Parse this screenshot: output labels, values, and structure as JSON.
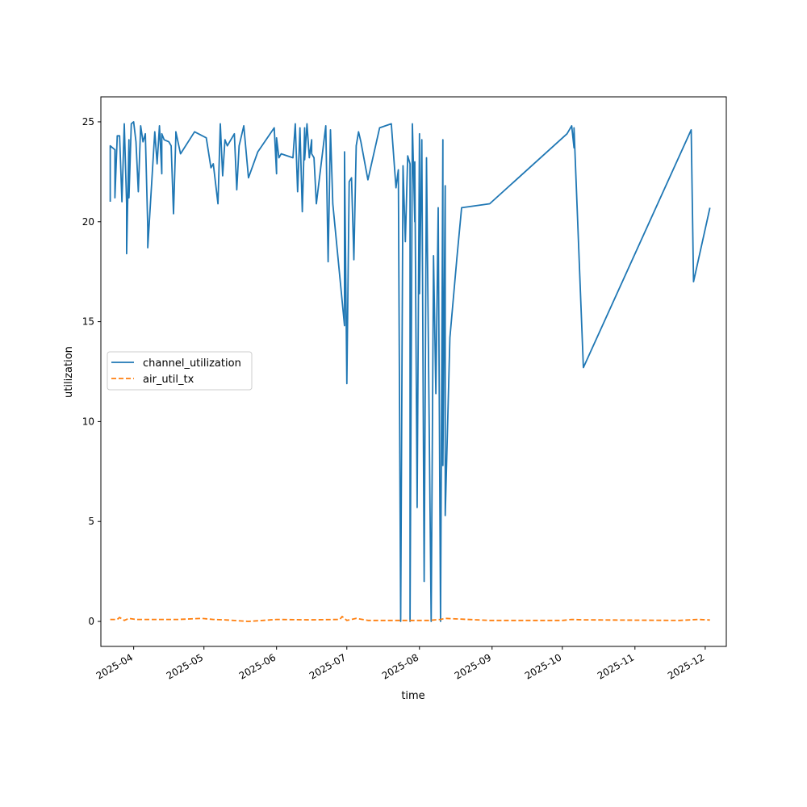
{
  "chart_data": {
    "type": "line",
    "title": "",
    "xlabel": "time",
    "ylabel": "utilization",
    "x_range": [
      "2025-03-18",
      "2025-12-10"
    ],
    "ylim": [
      -1.25,
      26.25
    ],
    "y_ticks": [
      0,
      5,
      10,
      15,
      20,
      25
    ],
    "x_ticks": [
      "2025-04",
      "2025-05",
      "2025-06",
      "2025-07",
      "2025-08",
      "2025-09",
      "2025-10",
      "2025-11",
      "2025-12"
    ],
    "grid": false,
    "legend_position": "center-left",
    "series": [
      {
        "name": "channel_utilization",
        "color": "#1f77b4",
        "style": "solid",
        "x": [
          "2025-03-22",
          "2025-03-22",
          "2025-03-24",
          "2025-03-24",
          "2025-03-25",
          "2025-03-26",
          "2025-03-27",
          "2025-03-28",
          "2025-03-29",
          "2025-03-29",
          "2025-03-30",
          "2025-03-30",
          "2025-03-31",
          "2025-04-01",
          "2025-04-02",
          "2025-04-03",
          "2025-04-04",
          "2025-04-05",
          "2025-04-06",
          "2025-04-07",
          "2025-04-07",
          "2025-04-10",
          "2025-04-11",
          "2025-04-12",
          "2025-04-13",
          "2025-04-13",
          "2025-04-14",
          "2025-04-16",
          "2025-04-17",
          "2025-04-18",
          "2025-04-19",
          "2025-04-19",
          "2025-04-21",
          "2025-04-27",
          "2025-05-02",
          "2025-05-04",
          "2025-05-05",
          "2025-05-07",
          "2025-05-08",
          "2025-05-09",
          "2025-05-10",
          "2025-05-11",
          "2025-05-14",
          "2025-05-15",
          "2025-05-16",
          "2025-05-18",
          "2025-05-20",
          "2025-05-24",
          "2025-05-31",
          "2025-06-01",
          "2025-06-01",
          "2025-06-02",
          "2025-06-03",
          "2025-06-08",
          "2025-06-09",
          "2025-06-10",
          "2025-06-11",
          "2025-06-12",
          "2025-06-13",
          "2025-06-13",
          "2025-06-14",
          "2025-06-15",
          "2025-06-16",
          "2025-06-16",
          "2025-06-17",
          "2025-06-18",
          "2025-06-22",
          "2025-06-23",
          "2025-06-24",
          "2025-06-25",
          "2025-06-30",
          "2025-06-30",
          "2025-07-01",
          "2025-07-02",
          "2025-07-03",
          "2025-07-04",
          "2025-07-05",
          "2025-07-06",
          "2025-07-07",
          "2025-07-10",
          "2025-07-15",
          "2025-07-20",
          "2025-07-22",
          "2025-07-23",
          "2025-07-24",
          "2025-07-25",
          "2025-07-26",
          "2025-07-27",
          "2025-07-28",
          "2025-07-28",
          "2025-07-29",
          "2025-07-30",
          "2025-07-30",
          "2025-07-31",
          "2025-08-01",
          "2025-08-01",
          "2025-08-02",
          "2025-08-03",
          "2025-08-04",
          "2025-08-06",
          "2025-08-07",
          "2025-08-08",
          "2025-08-09",
          "2025-08-10",
          "2025-08-11",
          "2025-08-11",
          "2025-08-12",
          "2025-08-12",
          "2025-08-14",
          "2025-08-17",
          "2025-08-19",
          "2025-08-31",
          "2025-10-03",
          "2025-10-05",
          "2025-10-06",
          "2025-10-06",
          "2025-10-10",
          "2025-11-25",
          "2025-11-26",
          "2025-12-03"
        ],
        "values": [
          21.0,
          23.8,
          23.6,
          21.2,
          24.3,
          24.3,
          21.0,
          24.9,
          20.9,
          18.4,
          24.1,
          21.2,
          24.9,
          25.0,
          24.0,
          21.5,
          24.8,
          24.0,
          24.4,
          19.7,
          18.7,
          24.5,
          22.9,
          24.8,
          22.4,
          24.4,
          24.1,
          24.0,
          23.8,
          20.4,
          24.3,
          24.5,
          23.4,
          24.5,
          24.2,
          22.7,
          22.9,
          20.9,
          24.9,
          22.3,
          24.1,
          23.8,
          24.4,
          21.6,
          23.8,
          24.8,
          22.2,
          23.5,
          24.7,
          22.4,
          24.2,
          23.2,
          23.4,
          23.2,
          24.9,
          21.5,
          24.7,
          20.5,
          24.7,
          23.1,
          24.9,
          23.2,
          24.1,
          23.4,
          23.2,
          20.9,
          24.8,
          18.0,
          24.6,
          20.9,
          14.8,
          23.5,
          11.9,
          22.0,
          22.2,
          18.1,
          23.8,
          24.5,
          24.0,
          22.1,
          24.7,
          24.9,
          21.7,
          22.6,
          0.0,
          22.8,
          19.0,
          23.3,
          22.9,
          0.0,
          24.9,
          20.0,
          23.0,
          5.7,
          24.4,
          16.4,
          24.1,
          2.0,
          23.2,
          0.0,
          18.3,
          11.4,
          20.7,
          0.0,
          24.1,
          7.8,
          21.8,
          5.3,
          14.2,
          18.2,
          20.7,
          20.9,
          24.4,
          24.8,
          23.7,
          24.7,
          12.7,
          24.6,
          17.0,
          20.7
        ]
      },
      {
        "name": "air_util_tx",
        "color": "#ff7f0e",
        "style": "dashed",
        "x": [
          "2025-03-22",
          "2025-03-25",
          "2025-03-26",
          "2025-03-28",
          "2025-03-30",
          "2025-04-02",
          "2025-04-05",
          "2025-04-10",
          "2025-04-18",
          "2025-04-20",
          "2025-04-30",
          "2025-05-05",
          "2025-05-10",
          "2025-05-20",
          "2025-06-01",
          "2025-06-15",
          "2025-06-28",
          "2025-06-29",
          "2025-07-01",
          "2025-07-05",
          "2025-07-10",
          "2025-07-25",
          "2025-08-05",
          "2025-08-10",
          "2025-08-12",
          "2025-08-31",
          "2025-10-01",
          "2025-10-05",
          "2025-10-10",
          "2025-11-20",
          "2025-11-28",
          "2025-12-03"
        ],
        "values": [
          0.1,
          0.1,
          0.2,
          0.05,
          0.15,
          0.1,
          0.1,
          0.1,
          0.1,
          0.1,
          0.15,
          0.1,
          0.08,
          0.0,
          0.1,
          0.08,
          0.1,
          0.25,
          0.05,
          0.15,
          0.05,
          0.05,
          0.05,
          0.1,
          0.15,
          0.05,
          0.05,
          0.1,
          0.08,
          0.05,
          0.1,
          0.07
        ]
      }
    ]
  }
}
